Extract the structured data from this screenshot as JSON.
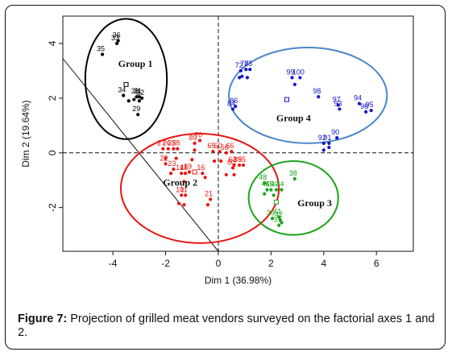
{
  "figure": {
    "caption_lead": "Figure 7:",
    "caption_text": " Projection of grilled meat vendors surveyed on the factorial axes 1 and 2."
  },
  "chart_data": {
    "type": "scatter",
    "title": "",
    "xlabel": "Dim 1 (36.98%)",
    "ylabel": "Dim 2 (19.64%)",
    "xlim": [
      -5.9,
      7.4
    ],
    "ylim": [
      -3.6,
      5.0
    ],
    "xticks": [
      -4,
      -2,
      0,
      2,
      4,
      6
    ],
    "yticks": [
      -2,
      0,
      2,
      4
    ],
    "grid": false,
    "reference_lines": {
      "x": 0,
      "y": 0,
      "style": "dashed"
    },
    "groups": [
      {
        "name": "Group 1",
        "color": "#000000",
        "ellipse": {
          "cx": -3.5,
          "cy": 2.7,
          "rx": 1.55,
          "ry": 2.2
        },
        "label_pos": [
          -3.8,
          3.15
        ],
        "centroid": [
          -3.5,
          2.5
        ],
        "points": [
          {
            "x": -3.8,
            "y": 4.1,
            "label": "36"
          },
          {
            "x": -3.85,
            "y": 4.0,
            "label": "33"
          },
          {
            "x": -4.4,
            "y": 3.6,
            "label": "35"
          },
          {
            "x": -3.6,
            "y": 2.1,
            "label": "34"
          },
          {
            "x": -3.1,
            "y": 2.05,
            "label": "30"
          },
          {
            "x": -3.0,
            "y": 2.05,
            "label": "31"
          },
          {
            "x": -2.9,
            "y": 2.0,
            "label": "32"
          },
          {
            "x": -3.2,
            "y": 1.95,
            "label": ""
          },
          {
            "x": -3.0,
            "y": 1.9,
            "label": ""
          },
          {
            "x": -3.4,
            "y": 1.9,
            "label": ""
          },
          {
            "x": -3.05,
            "y": 1.4,
            "label": "29"
          }
        ]
      },
      {
        "name": "Group 2",
        "color": "#e8150f",
        "ellipse": {
          "cx": -0.7,
          "cy": -1.3,
          "rx": 3.0,
          "ry": 2.0
        },
        "label_pos": [
          -2.1,
          -1.2
        ],
        "centroid": [
          -0.9,
          -0.7
        ],
        "points": [
          {
            "x": -2.1,
            "y": 0.15,
            "label": "27"
          },
          {
            "x": -1.9,
            "y": 0.15,
            "label": "26"
          },
          {
            "x": -1.7,
            "y": 0.15,
            "label": "25"
          },
          {
            "x": -1.55,
            "y": 0.15,
            "label": "28"
          },
          {
            "x": -0.9,
            "y": 0.35,
            "label": "89"
          },
          {
            "x": -0.7,
            "y": 0.45,
            "label": "70"
          },
          {
            "x": -2.0,
            "y": -0.4,
            "label": "22"
          },
          {
            "x": -1.7,
            "y": -0.6,
            "label": "23"
          },
          {
            "x": -1.4,
            "y": -0.75,
            "label": "14"
          },
          {
            "x": -1.25,
            "y": -0.75,
            "label": "18"
          },
          {
            "x": -1.1,
            "y": -0.7,
            "label": "19"
          },
          {
            "x": -0.6,
            "y": -0.75,
            "label": "16"
          },
          {
            "x": -1.4,
            "y": -1.55,
            "label": "10"
          },
          {
            "x": -1.25,
            "y": -1.55,
            "label": "11"
          },
          {
            "x": -0.3,
            "y": -1.7,
            "label": "21"
          },
          {
            "x": -0.2,
            "y": 0.05,
            "label": "65"
          },
          {
            "x": 0.05,
            "y": 0.05,
            "label": "60"
          },
          {
            "x": 0.3,
            "y": 0.0,
            "label": "56"
          },
          {
            "x": 0.5,
            "y": 0.05,
            "label": "66"
          },
          {
            "x": 0.6,
            "y": -0.45,
            "label": "63"
          },
          {
            "x": 0.8,
            "y": -0.45,
            "label": "85"
          },
          {
            "x": 0.55,
            "y": -0.55,
            "label": "80"
          },
          {
            "x": 0.95,
            "y": -0.45,
            "label": "95"
          },
          {
            "x": -2.0,
            "y": -0.2,
            "label": ""
          },
          {
            "x": -1.6,
            "y": -0.2,
            "label": ""
          },
          {
            "x": -1.0,
            "y": -0.25,
            "label": ""
          },
          {
            "x": -0.9,
            "y": 0.1,
            "label": ""
          },
          {
            "x": -0.15,
            "y": -0.3,
            "label": ""
          },
          {
            "x": 0.1,
            "y": -0.3,
            "label": ""
          },
          {
            "x": 0.3,
            "y": -0.8,
            "label": ""
          },
          {
            "x": 0.6,
            "y": -0.8,
            "label": ""
          },
          {
            "x": -1.5,
            "y": -1.85,
            "label": ""
          },
          {
            "x": -1.3,
            "y": -1.9,
            "label": ""
          },
          {
            "x": -0.4,
            "y": -1.9,
            "label": ""
          },
          {
            "x": -1.8,
            "y": -0.75,
            "label": ""
          },
          {
            "x": -0.5,
            "y": -0.9,
            "label": ""
          },
          {
            "x": -1.3,
            "y": -1.05,
            "label": ""
          }
        ]
      },
      {
        "name": "Group 3",
        "color": "#1aa31a",
        "ellipse": {
          "cx": 2.85,
          "cy": -1.65,
          "rx": 1.7,
          "ry": 1.35
        },
        "label_pos": [
          3.0,
          -1.95
        ],
        "centroid": [
          2.2,
          -1.8
        ],
        "points": [
          {
            "x": 2.9,
            "y": -0.95,
            "label": "38"
          },
          {
            "x": 1.75,
            "y": -1.1,
            "label": "48"
          },
          {
            "x": 1.85,
            "y": -1.35,
            "label": "46"
          },
          {
            "x": 2.0,
            "y": -1.35,
            "label": "45"
          },
          {
            "x": 2.2,
            "y": -1.35,
            "label": "40"
          },
          {
            "x": 2.4,
            "y": -1.35,
            "label": "44"
          },
          {
            "x": 2.05,
            "y": -2.4,
            "label": "39"
          },
          {
            "x": 2.3,
            "y": -2.35,
            "label": "41"
          },
          {
            "x": 2.35,
            "y": -2.45,
            "label": "42"
          },
          {
            "x": 2.3,
            "y": -2.65,
            "label": "37"
          },
          {
            "x": 1.75,
            "y": -1.5,
            "label": ""
          },
          {
            "x": 2.1,
            "y": -1.55,
            "label": ""
          },
          {
            "x": 2.4,
            "y": -2.55,
            "label": ""
          }
        ]
      },
      {
        "name": "Group 4",
        "color": "#1414c8",
        "ellipse": {
          "cx": 3.4,
          "cy": 2.1,
          "rx": 3.0,
          "ry": 1.75
        },
        "label_pos": [
          2.2,
          1.15
        ],
        "centroid": [
          2.6,
          1.95
        ],
        "points": [
          {
            "x": 0.85,
            "y": 3.0,
            "label": "72"
          },
          {
            "x": 1.05,
            "y": 3.05,
            "label": "78"
          },
          {
            "x": 1.2,
            "y": 3.05,
            "label": "73"
          },
          {
            "x": 0.9,
            "y": 2.8,
            "label": ""
          },
          {
            "x": 1.1,
            "y": 2.75,
            "label": ""
          },
          {
            "x": 0.8,
            "y": 2.75,
            "label": ""
          },
          {
            "x": 2.8,
            "y": 2.75,
            "label": "99"
          },
          {
            "x": 3.1,
            "y": 2.75,
            "label": "100"
          },
          {
            "x": 2.9,
            "y": 2.5,
            "label": ""
          },
          {
            "x": 3.8,
            "y": 2.05,
            "label": "98"
          },
          {
            "x": 0.55,
            "y": 1.6,
            "label": "84"
          },
          {
            "x": 0.65,
            "y": 1.7,
            "label": "86"
          },
          {
            "x": 4.55,
            "y": 1.75,
            "label": "97"
          },
          {
            "x": 4.6,
            "y": 1.6,
            "label": "93"
          },
          {
            "x": 5.35,
            "y": 1.8,
            "label": "94"
          },
          {
            "x": 5.6,
            "y": 1.5,
            "label": "96"
          },
          {
            "x": 5.8,
            "y": 1.55,
            "label": "95"
          },
          {
            "x": 4.0,
            "y": 0.35,
            "label": "92"
          },
          {
            "x": 4.2,
            "y": 0.35,
            "label": "91"
          },
          {
            "x": 4.5,
            "y": 0.55,
            "label": "90"
          },
          {
            "x": 4.0,
            "y": 0.1,
            "label": ""
          },
          {
            "x": 4.2,
            "y": 0.2,
            "label": ""
          }
        ]
      }
    ],
    "separator_line": {
      "x1": -5.9,
      "y1": 3.45,
      "x2": 0.0,
      "y2": -3.6
    }
  }
}
